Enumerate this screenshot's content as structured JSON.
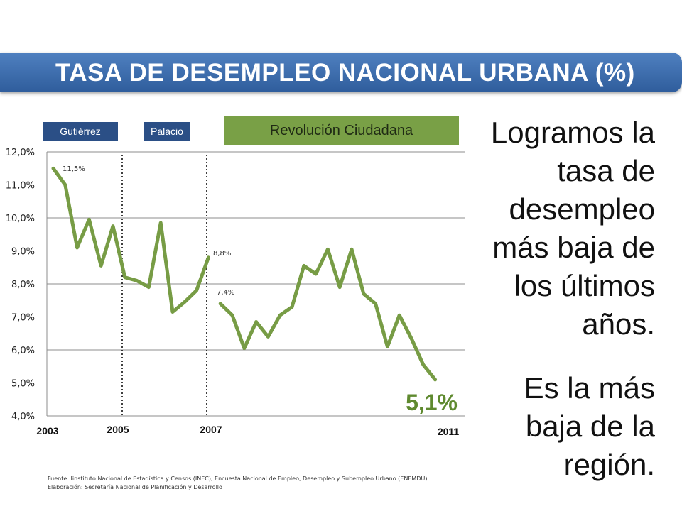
{
  "header": {
    "title": "TASA DE DESEMPLEO NACIONAL URBANA (%)"
  },
  "periods": {
    "gutierrez": "Gutiérrez",
    "palacio": "Palacio",
    "revolucion": "Revolución Ciudadana"
  },
  "message": {
    "line1": [
      "Logramos la",
      "tasa de",
      "desempleo",
      "más baja de",
      "los últimos",
      "años."
    ],
    "line2": [
      "Es la más",
      "baja de la",
      "región."
    ]
  },
  "source": {
    "fuente": "Fuente: Iinstituto Nacional de Estadística y Censos (INEC), Encuesta Nacional de Empleo, Desempleo y Subempleo Urbano (ENEMDU)",
    "elaboracion": "Elaboración: Secretaría Nacional de Planificación y Desarrollo"
  },
  "chart_data": {
    "type": "line",
    "ylim": [
      4.0,
      12.0
    ],
    "y_ticks": [
      "4,0%",
      "5,0%",
      "6,0%",
      "7,0%",
      "8,0%",
      "9,0%",
      "10,0%",
      "11,0%",
      "12,0%"
    ],
    "x_tick_labels": [
      "2003",
      "2005",
      "2007",
      "2011"
    ],
    "line_color": "#779c45",
    "series": [
      {
        "values": [
          11.5,
          11.0,
          9.1,
          9.95,
          8.55,
          9.75,
          8.2,
          8.1,
          7.9,
          9.85,
          7.15,
          7.45,
          7.8,
          8.8
        ]
      },
      {
        "values": [
          7.4,
          7.05,
          6.05,
          6.85,
          6.4,
          7.05,
          7.3,
          8.55,
          8.3,
          9.05,
          7.9,
          9.05,
          7.7,
          7.4,
          6.1,
          7.05,
          6.35,
          5.55,
          5.1
        ]
      }
    ],
    "annotations": [
      "11,5%",
      "8,8%",
      "7,4%",
      "5,1%"
    ]
  }
}
